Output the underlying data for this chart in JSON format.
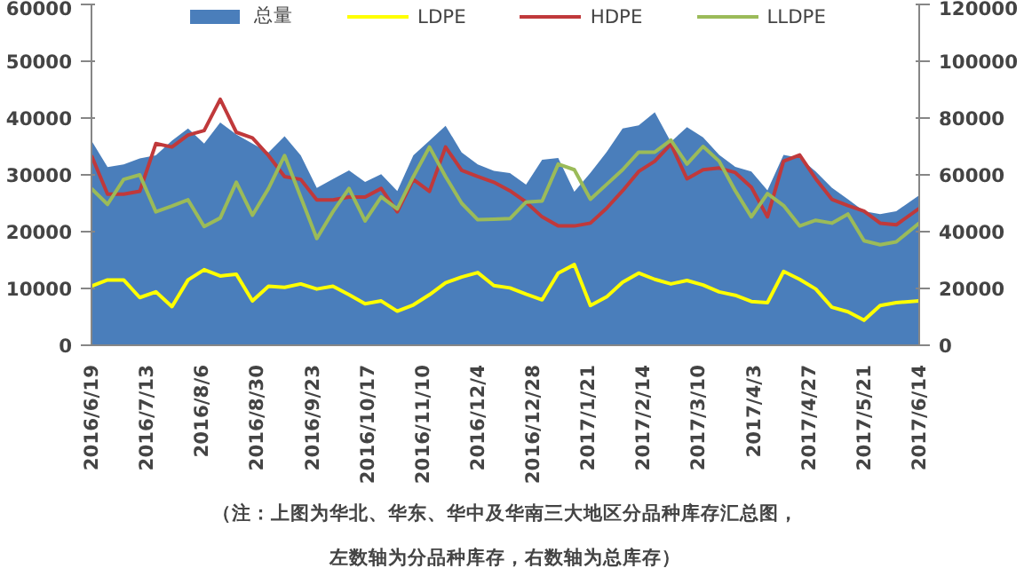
{
  "chart_data": {
    "type": "line",
    "x": [
      "2016-06-19",
      "2016-06-26",
      "2016-07-03",
      "2016-07-10",
      "2016-07-17",
      "2016-07-24",
      "2016-07-31",
      "2016-08-07",
      "2016-08-14",
      "2016-08-21",
      "2016-08-28",
      "2016-09-04",
      "2016-09-11",
      "2016-09-18",
      "2016-09-25",
      "2016-10-02",
      "2016-10-09",
      "2016-10-16",
      "2016-10-23",
      "2016-10-30",
      "2016-11-06",
      "2016-11-13",
      "2016-11-20",
      "2016-11-27",
      "2016-12-04",
      "2016-12-11",
      "2016-12-18",
      "2016-12-25",
      "2017-01-01",
      "2017-01-08",
      "2017-01-15",
      "2017-01-22",
      "2017-01-29",
      "2017-02-05",
      "2017-02-12",
      "2017-02-19",
      "2017-02-26",
      "2017-03-05",
      "2017-03-12",
      "2017-03-19",
      "2017-03-26",
      "2017-04-02",
      "2017-04-09",
      "2017-04-16",
      "2017-04-23",
      "2017-04-30",
      "2017-05-07",
      "2017-05-14",
      "2017-05-21",
      "2017-05-28",
      "2017-06-04",
      "2017-06-14"
    ],
    "series": [
      {
        "name": "总量",
        "type": "area",
        "axis": "y2",
        "color": "#4a7ebb",
        "values": [
          72000,
          62700,
          63700,
          65800,
          66900,
          72000,
          76300,
          71000,
          78400,
          74200,
          71000,
          67900,
          73600,
          66900,
          55400,
          58500,
          61600,
          57500,
          60200,
          54300,
          66900,
          72000,
          77300,
          67900,
          63700,
          61400,
          60600,
          56600,
          65300,
          65900,
          54100,
          60700,
          68000,
          76300,
          77400,
          82000,
          71600,
          76800,
          73200,
          67000,
          62800,
          61200,
          54500,
          67000,
          65900,
          61200,
          55500,
          51400,
          47200,
          46200,
          47200,
          52800
        ]
      },
      {
        "name": "LDPE",
        "color": "#ffff00",
        "values": [
          10400,
          11500,
          11500,
          8400,
          9400,
          6800,
          11500,
          13300,
          12200,
          12500,
          7800,
          10400,
          10200,
          10800,
          9900,
          10400,
          8900,
          7300,
          7800,
          6000,
          7100,
          8900,
          11000,
          12000,
          12800,
          10500,
          10100,
          9000,
          8000,
          12700,
          14200,
          7000,
          8500,
          11100,
          12700,
          11600,
          10800,
          11400,
          10600,
          9400,
          8800,
          7700,
          7500,
          13000,
          11600,
          9900,
          6700,
          5900,
          4400,
          7000,
          7500,
          7800
        ]
      },
      {
        "name": "HDPE",
        "color": "#c0393b",
        "values": [
          33400,
          26600,
          26600,
          27100,
          35500,
          34900,
          37000,
          37800,
          43300,
          37500,
          36500,
          33400,
          29700,
          29200,
          25600,
          25600,
          26100,
          26100,
          27600,
          23500,
          29200,
          27100,
          34900,
          30800,
          29700,
          28700,
          27200,
          25200,
          22600,
          21000,
          21000,
          21500,
          24100,
          27200,
          30600,
          32400,
          35400,
          29300,
          30900,
          31200,
          30400,
          27800,
          22600,
          32400,
          33500,
          29300,
          25700,
          24600,
          23600,
          21500,
          21200,
          24100
        ]
      },
      {
        "name": "LLDPE",
        "color": "#9bbb59",
        "values": [
          27600,
          24800,
          29200,
          30000,
          23500,
          24500,
          25600,
          20900,
          22400,
          28700,
          22900,
          27600,
          33400,
          26100,
          18800,
          23500,
          27600,
          21900,
          26100,
          24000,
          29700,
          34900,
          29700,
          25000,
          22100,
          22200,
          22300,
          25200,
          25400,
          31900,
          30900,
          25700,
          28300,
          30900,
          34000,
          34000,
          36100,
          31900,
          35000,
          32400,
          27200,
          22600,
          26700,
          24600,
          21000,
          22000,
          21500,
          23100,
          18400,
          17700,
          18200,
          21500
        ]
      }
    ],
    "xlim": [
      "2016-06-19",
      "2017-06-14"
    ],
    "xticks": [
      {
        "value": "2016-06-19",
        "label": "2016/6/19"
      },
      {
        "value": "2016-07-13",
        "label": "2016/7/13"
      },
      {
        "value": "2016-08-06",
        "label": "2016/8/6"
      },
      {
        "value": "2016-08-30",
        "label": "2016/8/30"
      },
      {
        "value": "2016-09-23",
        "label": "2016/9/23"
      },
      {
        "value": "2016-10-17",
        "label": "2016/10/17"
      },
      {
        "value": "2016-11-10",
        "label": "2016/11/10"
      },
      {
        "value": "2016-12-04",
        "label": "2016/12/4"
      },
      {
        "value": "2016-12-28",
        "label": "2016/12/28"
      },
      {
        "value": "2017-01-21",
        "label": "2017/1/21"
      },
      {
        "value": "2017-02-14",
        "label": "2017/2/14"
      },
      {
        "value": "2017-03-10",
        "label": "2017/3/10"
      },
      {
        "value": "2017-04-03",
        "label": "2017/4/3"
      },
      {
        "value": "2017-04-27",
        "label": "2017/4/27"
      },
      {
        "value": "2017-05-21",
        "label": "2017/5/21"
      },
      {
        "value": "2017-06-14",
        "label": "2017/6/14"
      }
    ],
    "ylim": [
      0,
      60000
    ],
    "yticks": [
      0,
      10000,
      20000,
      30000,
      40000,
      50000,
      60000
    ],
    "y2lim": [
      0,
      120000
    ],
    "y2ticks": [
      0,
      20000,
      40000,
      60000,
      80000,
      100000,
      120000
    ],
    "grid": false,
    "legend": "top",
    "marker": "none",
    "line_style": "solid",
    "annotations": [
      "（注：上图为华北、华东、华中及华南三大地区分品种库存汇总图，",
      "左数轴为分品种库存，右数轴为总库存）"
    ]
  }
}
